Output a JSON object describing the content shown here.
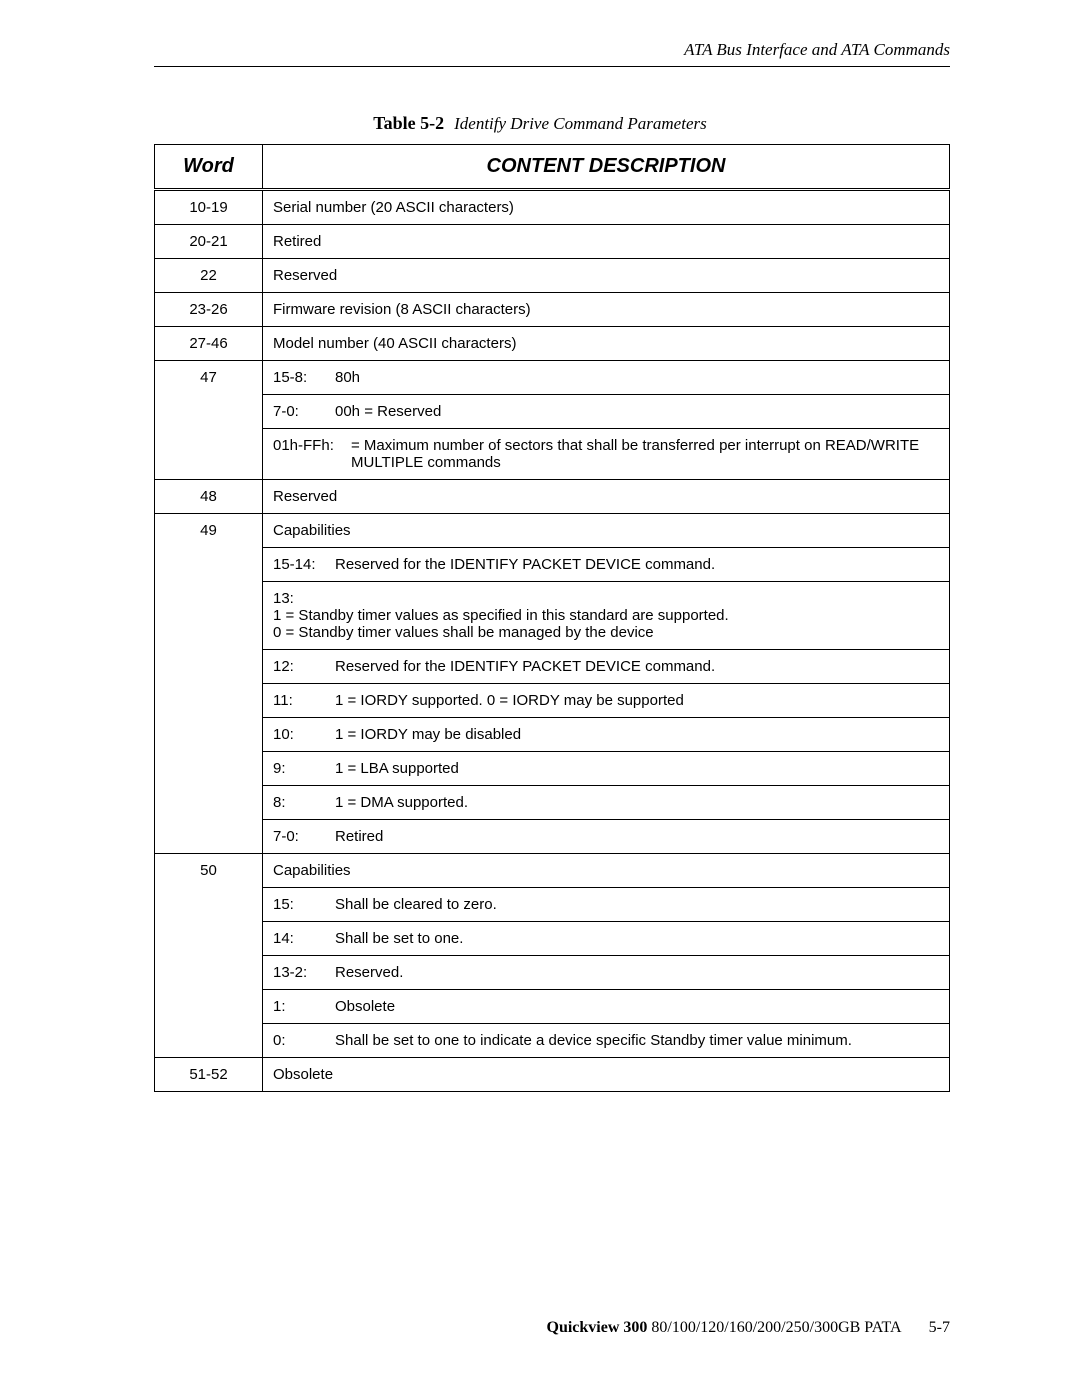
{
  "header": {
    "section_title": "ATA Bus Interface and ATA Commands"
  },
  "table": {
    "label": "Table 5-2",
    "title": "Identify Drive Command Parameters",
    "columns": [
      "Word",
      "CONTENT DESCRIPTION"
    ],
    "rows": [
      {
        "word": "10-19",
        "type": "plain",
        "text": "Serial number (20 ASCII characters)"
      },
      {
        "word": "20-21",
        "type": "plain",
        "text": "Retired"
      },
      {
        "word": "22",
        "type": "plain",
        "text": "Reserved"
      },
      {
        "word": "23-26",
        "type": "plain",
        "text": "Firmware revision (8 ASCII characters)"
      },
      {
        "word": "27-46",
        "type": "plain",
        "text": "Model number (40 ASCII characters)"
      },
      {
        "word": "47",
        "type": "bit",
        "bit": "15-8:",
        "text": "80h"
      },
      {
        "word": "",
        "type": "bit",
        "bit": "7-0:",
        "text": "00h = Reserved",
        "cont": true
      },
      {
        "word": "",
        "type": "bit-wide",
        "bit": "01h-FFh:",
        "text": "= Maximum number of sectors that shall be transferred per interrupt on READ/WRITE MULTIPLE commands",
        "cont": true
      },
      {
        "word": "48",
        "type": "plain",
        "text": "Reserved"
      },
      {
        "word": "49",
        "type": "plain",
        "text": "Capabilities"
      },
      {
        "word": "",
        "type": "bit",
        "bit": "15-14:",
        "text": "Reserved for the IDENTIFY PACKET DEVICE command.",
        "cont": true
      },
      {
        "word": "",
        "type": "multi",
        "lines": [
          "13:",
          "1 = Standby timer values as specified in this standard are supported.",
          "0 = Standby timer values shall be managed by the device"
        ],
        "cont": true
      },
      {
        "word": "",
        "type": "bit",
        "bit": "12:",
        "text": "Reserved for the IDENTIFY PACKET DEVICE command.",
        "cont": true
      },
      {
        "word": "",
        "type": "bit",
        "bit": "11:",
        "text": "1 = IORDY supported. 0 = IORDY may be supported",
        "cont": true
      },
      {
        "word": "",
        "type": "bit",
        "bit": "10:",
        "text": "1 = IORDY may be disabled",
        "cont": true
      },
      {
        "word": "",
        "type": "bit",
        "bit": "9:",
        "text": "1 = LBA supported",
        "cont": true
      },
      {
        "word": "",
        "type": "bit",
        "bit": "8:",
        "text": "1 = DMA supported.",
        "cont": true
      },
      {
        "word": "",
        "type": "bit",
        "bit": "7-0:",
        "text": "Retired",
        "cont": true
      },
      {
        "word": "50",
        "type": "plain",
        "text": "Capabilities"
      },
      {
        "word": "",
        "type": "bit",
        "bit": "15:",
        "text": "Shall be cleared to zero.",
        "cont": true
      },
      {
        "word": "",
        "type": "bit",
        "bit": "14:",
        "text": "Shall be set to one.",
        "cont": true
      },
      {
        "word": "",
        "type": "bit",
        "bit": "13-2:",
        "text": "Reserved.",
        "cont": true
      },
      {
        "word": "",
        "type": "bit",
        "bit": "1:",
        "text": "Obsolete",
        "cont": true
      },
      {
        "word": "",
        "type": "bit",
        "bit": "0:",
        "text": "Shall be set to one to indicate a device specific Standby timer value minimum.",
        "cont": true
      },
      {
        "word": "51-52",
        "type": "plain",
        "text": "Obsolete"
      }
    ]
  },
  "footer": {
    "product": "Quickview 300",
    "spec": " 80/100/120/160/200/250/300GB PATA",
    "page": "5-7"
  }
}
